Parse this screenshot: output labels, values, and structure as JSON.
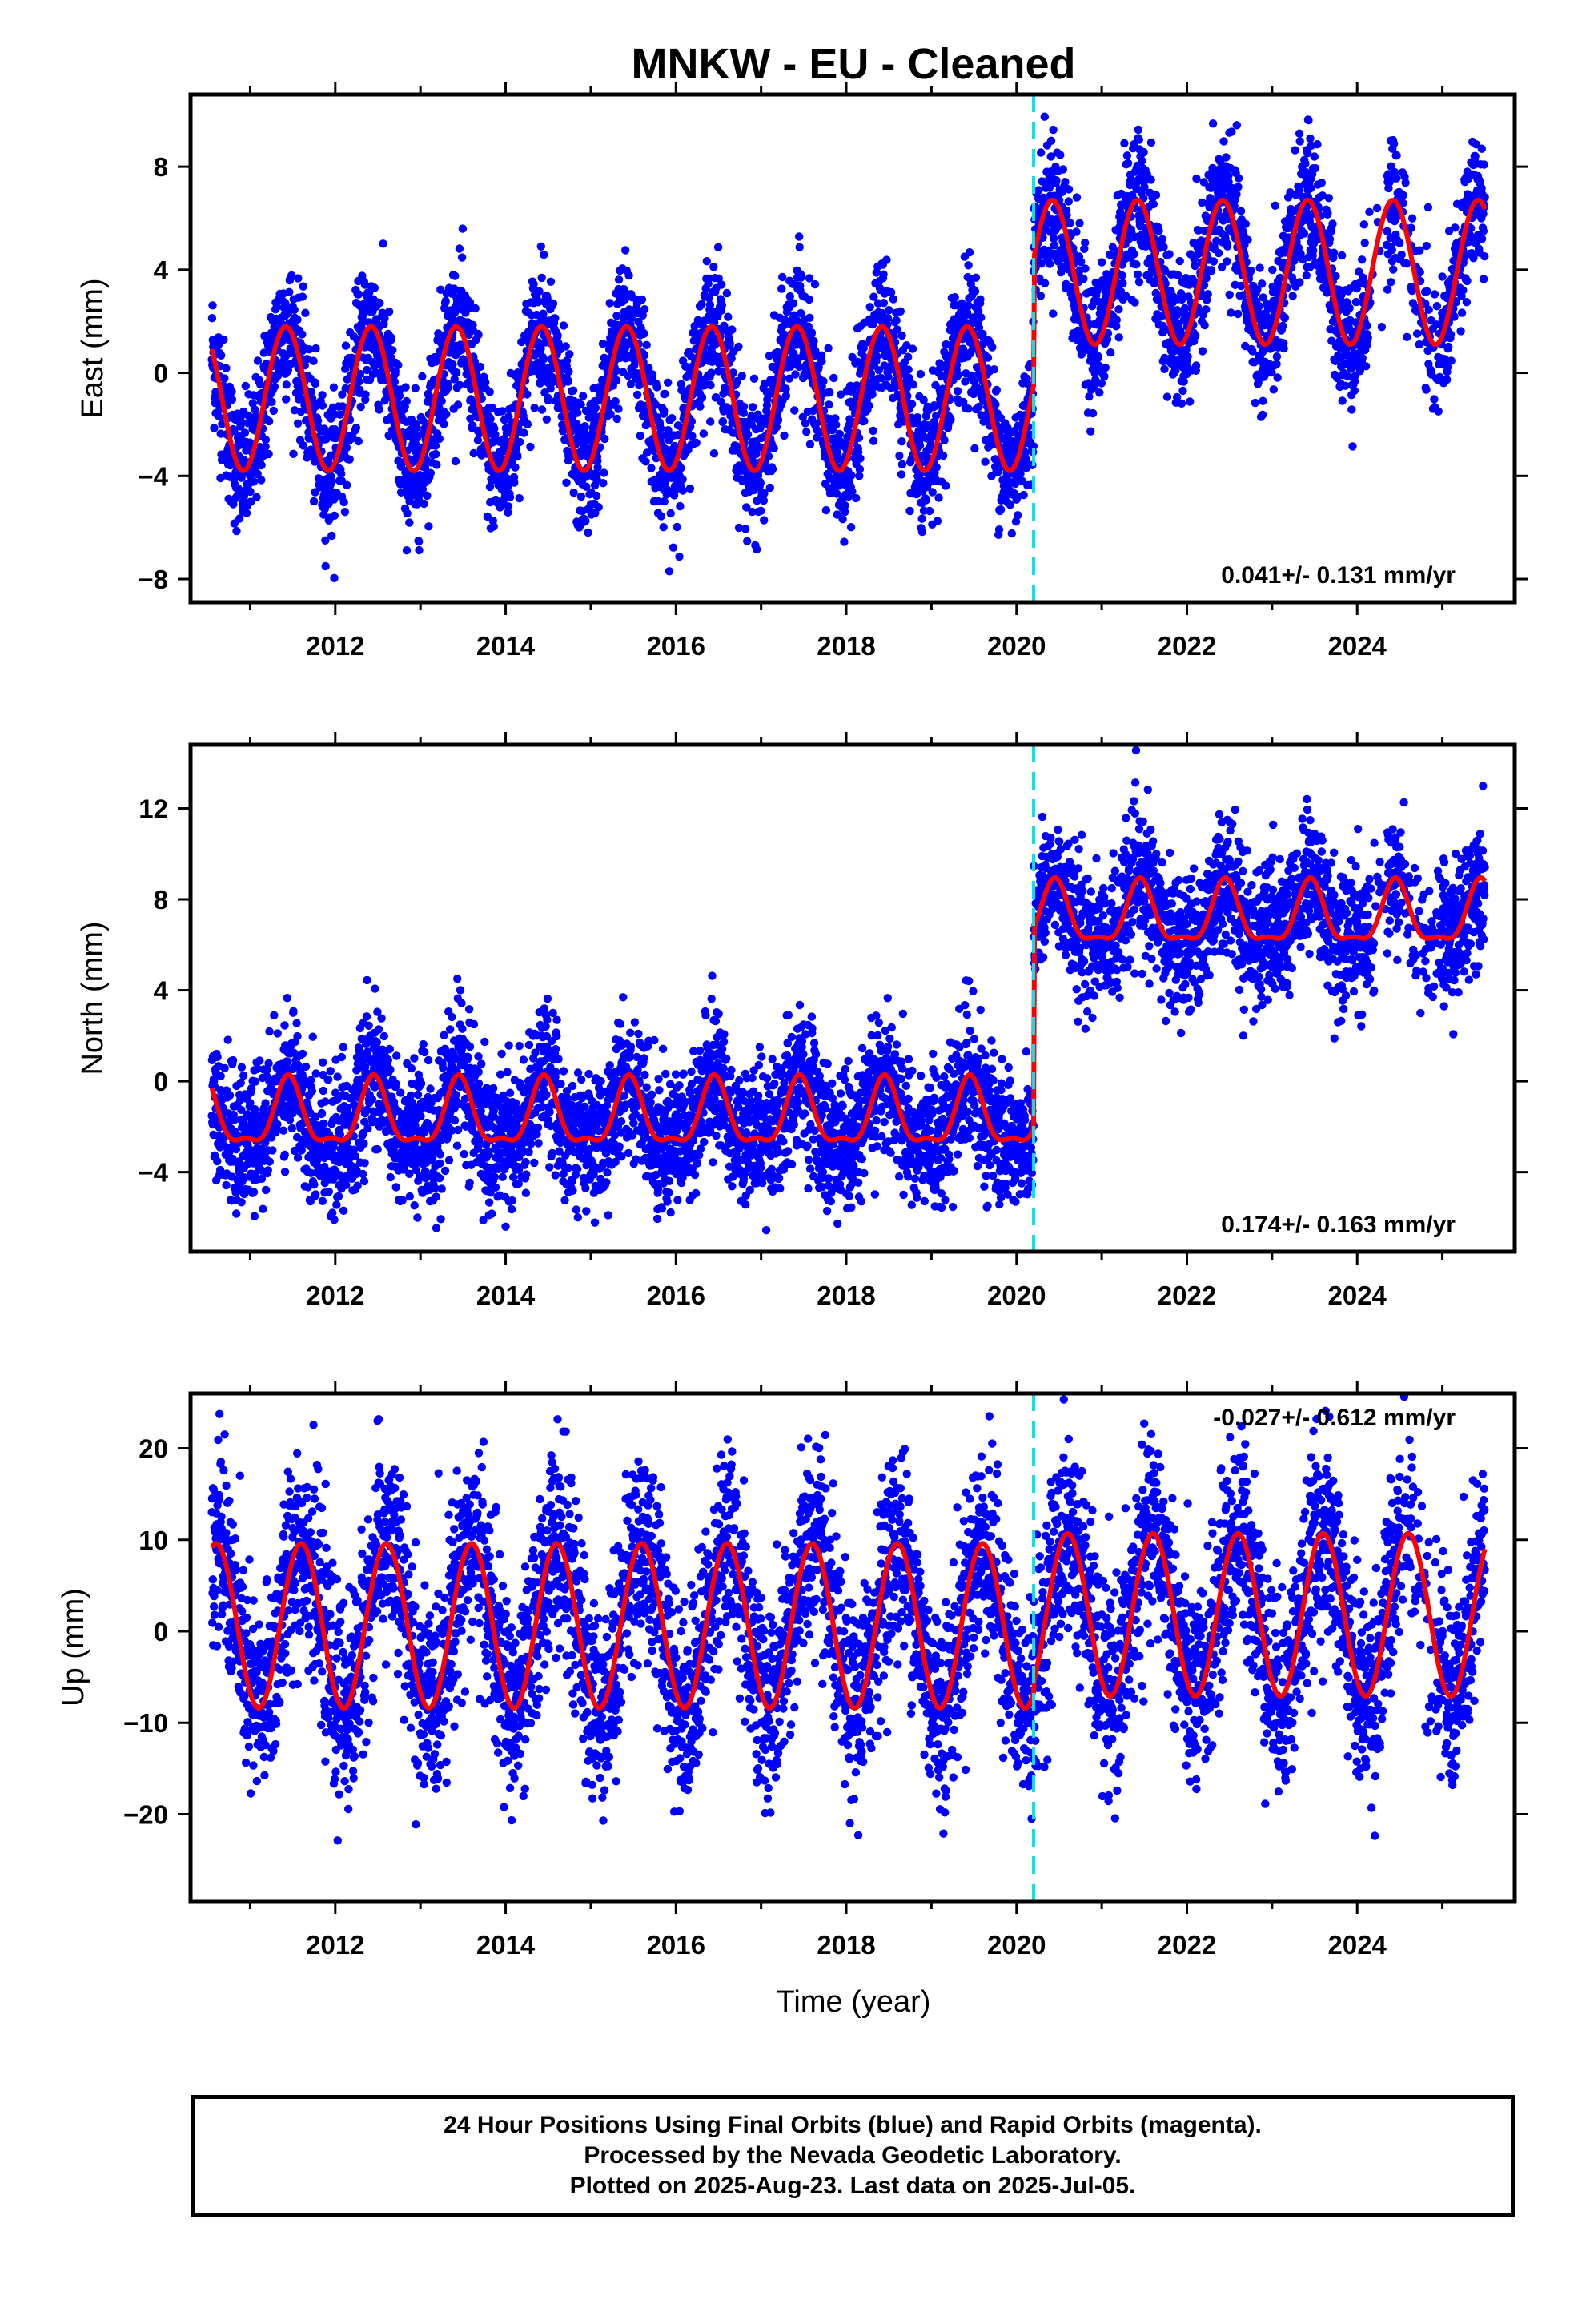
{
  "title": "MNKW  - EU - Cleaned",
  "colors": {
    "points": "#0000ff",
    "fit": "#ff0000",
    "break": "#00e5ee",
    "frame": "#000000"
  },
  "xlabel": "Time (year)",
  "footer": {
    "line1": "24 Hour Positions Using Final Orbits (blue) and Rapid Orbits (magenta).",
    "line2": "Processed by the Nevada Geodetic Laboratory.",
    "line3": "Plotted on 2025-Aug-23. Last data on 2025-Jul-05."
  },
  "chart_data": [
    {
      "type": "scatter",
      "component": "East",
      "ylabel": "East (mm)",
      "xlim": [
        2010.3,
        2025.85
      ],
      "ylim": [
        -8.9,
        10.8
      ],
      "xticks": [
        2012,
        2014,
        2016,
        2018,
        2020,
        2022,
        2024
      ],
      "yticks": [
        -8,
        -4,
        0,
        4,
        8
      ],
      "rate_label": "0.041+/- 0.131 mm/yr",
      "break_epoch": 2020.2,
      "data_span": [
        2010.55,
        2025.5
      ],
      "model": {
        "before": {
          "offset": -1.0,
          "amplitude": 2.8
        },
        "after": {
          "offset": 3.9,
          "amplitude": 2.8
        },
        "phase_peak": 0.42
      },
      "scatter_sd": 1.3
    },
    {
      "type": "scatter",
      "component": "North",
      "ylabel": "North (mm)",
      "xlim": [
        2010.3,
        2025.85
      ],
      "ylim": [
        -7.5,
        14.8
      ],
      "xticks": [
        2012,
        2014,
        2016,
        2018,
        2020,
        2022,
        2024
      ],
      "yticks": [
        -4,
        0,
        4,
        8,
        12
      ],
      "rate_label": "0.174+/- 0.163 mm/yr",
      "break_epoch": 2020.2,
      "data_span": [
        2010.55,
        2025.5
      ],
      "model": {
        "before": {
          "offset": -1.6,
          "amplitude": 1.4
        },
        "after": {
          "offset": 7.2,
          "amplitude": 1.3
        },
        "phase_peak": 0.45
      },
      "scatter_sd": 1.5
    },
    {
      "type": "scatter",
      "component": "Up",
      "ylabel": "Up (mm)",
      "xlim": [
        2010.3,
        2025.85
      ],
      "ylim": [
        -29.5,
        26.0
      ],
      "xticks": [
        2012,
        2014,
        2016,
        2018,
        2020,
        2022,
        2024
      ],
      "yticks": [
        -20,
        -10,
        0,
        10,
        20
      ],
      "rate_label": "-0.027+/- 0.612 mm/yr",
      "break_epoch": 2020.2,
      "data_span": [
        2010.55,
        2025.5
      ],
      "model": {
        "before": {
          "offset": 0.6,
          "amplitude": 9.0
        },
        "after": {
          "offset": 1.8,
          "amplitude": 8.9
        },
        "phase_peak": 0.6
      },
      "scatter_sd": 5.5
    }
  ]
}
